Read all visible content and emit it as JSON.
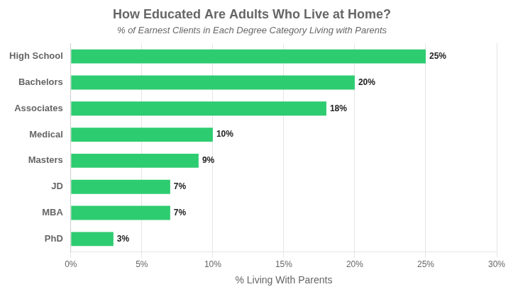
{
  "chart_data": {
    "type": "bar",
    "orientation": "horizontal",
    "title": "How Educated Are Adults Who Live at Home?",
    "subtitle": "% of Earnest Clients in Each Degree Category Living with Parents",
    "xlabel": "% Living With Parents",
    "categories": [
      "High School",
      "Bachelors",
      "Associates",
      "Medical",
      "Masters",
      "JD",
      "MBA",
      "PhD"
    ],
    "values": [
      25,
      20,
      18,
      10,
      9,
      7,
      7,
      3
    ],
    "value_labels": [
      "25%",
      "20%",
      "18%",
      "10%",
      "9%",
      "7%",
      "7%",
      "3%"
    ],
    "data_labels": true,
    "color": "#2ecc71",
    "xlim": [
      0,
      30
    ],
    "xticks": [
      {
        "value": 0,
        "label": "0%"
      },
      {
        "value": 5,
        "label": "5%"
      },
      {
        "value": 10,
        "label": "10%"
      },
      {
        "value": 15,
        "label": "15%"
      },
      {
        "value": 20,
        "label": "20%"
      },
      {
        "value": 25,
        "label": "25%"
      },
      {
        "value": 30,
        "label": "30%"
      }
    ],
    "grid": "x"
  }
}
